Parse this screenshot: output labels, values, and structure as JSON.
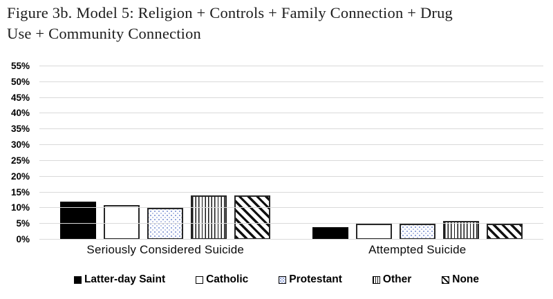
{
  "title": {
    "line1": "Figure 3b. Model 5: Religion + Controls + Family Connection + Drug",
    "line2": "Use + Community Connection"
  },
  "chart_data": {
    "type": "bar",
    "title": "Figure 3b. Model 5: Religion + Controls + Family Connection + Drug Use + Community Connection",
    "categories": [
      "Seriously Considered Suicide",
      "Attempted Suicide"
    ],
    "series": [
      {
        "name": "Latter-day Saint",
        "pattern": "solid",
        "values": [
          12,
          4
        ]
      },
      {
        "name": "Catholic",
        "pattern": "plain",
        "values": [
          11,
          5
        ]
      },
      {
        "name": "Protestant",
        "pattern": "dots",
        "values": [
          10,
          5
        ]
      },
      {
        "name": "Other",
        "pattern": "vlines",
        "values": [
          14,
          6
        ]
      },
      {
        "name": "None",
        "pattern": "diag",
        "values": [
          14,
          5
        ]
      }
    ],
    "xlabel": "",
    "ylabel": "",
    "ylim": [
      0,
      55
    ],
    "yticks": [
      0,
      5,
      10,
      15,
      20,
      25,
      30,
      35,
      40,
      45,
      50,
      55
    ],
    "ytick_labels": [
      "0%",
      "5%",
      "10%",
      "15%",
      "20%",
      "25%",
      "30%",
      "35%",
      "40%",
      "45%",
      "50%",
      "55%"
    ],
    "grid": true,
    "legend_position": "bottom",
    "units": "percent"
  },
  "colors": {
    "bar_fill_black": "#000000",
    "bar_border": "#262626",
    "gridline": "#d9d9d9",
    "protestant_dot_blue": "#8ca0d8",
    "text": "#000000"
  }
}
